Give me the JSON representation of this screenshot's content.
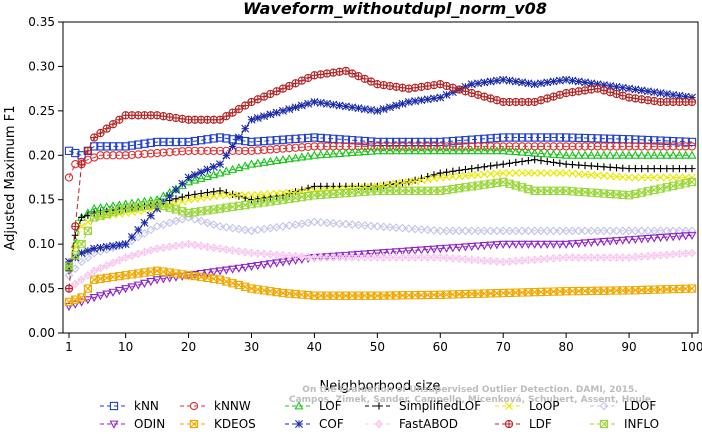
{
  "chart_data": {
    "type": "line",
    "title": "Waveform_withoutdupl_norm_v08",
    "xlabel": "Neighborhood size",
    "ylabel": "Adjusted Maximum F1",
    "xlim": [
      1,
      100
    ],
    "ylim": [
      0,
      0.35
    ],
    "x_ticks": [
      1,
      10,
      20,
      30,
      40,
      50,
      60,
      70,
      80,
      90,
      100
    ],
    "y_ticks": [
      "0.00",
      "0.05",
      "0.10",
      "0.15",
      "0.20",
      "0.25",
      "0.30",
      "0.35"
    ],
    "grid": false,
    "legend_position": "bottom",
    "watermark": [
      "Campos, Zimek, Sander, Campello, Micenková, Schubert, Assent, Houle",
      "On the Evaluation of Unsupervised Outlier Detection. DAMI, 2015."
    ],
    "series": [
      {
        "name": "kNN",
        "color": "#1f3fcf",
        "marker": "square",
        "points": [
          [
            1,
            0.205
          ],
          [
            3,
            0.2
          ],
          [
            5,
            0.21
          ],
          [
            10,
            0.21
          ],
          [
            15,
            0.215
          ],
          [
            20,
            0.215
          ],
          [
            25,
            0.22
          ],
          [
            30,
            0.215
          ],
          [
            40,
            0.22
          ],
          [
            50,
            0.215
          ],
          [
            60,
            0.215
          ],
          [
            70,
            0.22
          ],
          [
            80,
            0.22
          ],
          [
            90,
            0.218
          ],
          [
            100,
            0.215
          ]
        ]
      },
      {
        "name": "kNNW",
        "color": "#e03030",
        "marker": "circle",
        "points": [
          [
            1,
            0.175
          ],
          [
            2,
            0.19
          ],
          [
            4,
            0.195
          ],
          [
            6,
            0.2
          ],
          [
            10,
            0.2
          ],
          [
            20,
            0.205
          ],
          [
            30,
            0.205
          ],
          [
            40,
            0.21
          ],
          [
            50,
            0.21
          ],
          [
            60,
            0.21
          ],
          [
            70,
            0.21
          ],
          [
            80,
            0.21
          ],
          [
            90,
            0.21
          ],
          [
            100,
            0.21
          ]
        ]
      },
      {
        "name": "LOF",
        "color": "#19c419",
        "marker": "triangle",
        "points": [
          [
            1,
            0.075
          ],
          [
            2,
            0.1
          ],
          [
            3,
            0.13
          ],
          [
            5,
            0.14
          ],
          [
            10,
            0.145
          ],
          [
            15,
            0.15
          ],
          [
            20,
            0.17
          ],
          [
            25,
            0.18
          ],
          [
            30,
            0.19
          ],
          [
            40,
            0.2
          ],
          [
            50,
            0.205
          ],
          [
            60,
            0.205
          ],
          [
            70,
            0.205
          ],
          [
            80,
            0.2
          ],
          [
            90,
            0.2
          ],
          [
            100,
            0.2
          ]
        ]
      },
      {
        "name": "SimplifiedLOF",
        "color": "#000000",
        "marker": "plus",
        "points": [
          [
            1,
            0.07
          ],
          [
            2,
            0.11
          ],
          [
            3,
            0.13
          ],
          [
            5,
            0.135
          ],
          [
            10,
            0.14
          ],
          [
            15,
            0.145
          ],
          [
            20,
            0.155
          ],
          [
            25,
            0.16
          ],
          [
            30,
            0.15
          ],
          [
            35,
            0.155
          ],
          [
            40,
            0.165
          ],
          [
            50,
            0.165
          ],
          [
            55,
            0.17
          ],
          [
            60,
            0.18
          ],
          [
            65,
            0.185
          ],
          [
            70,
            0.19
          ],
          [
            75,
            0.195
          ],
          [
            80,
            0.19
          ],
          [
            90,
            0.185
          ],
          [
            100,
            0.185
          ]
        ]
      },
      {
        "name": "LoOP",
        "color": "#e8e800",
        "marker": "x",
        "points": [
          [
            1,
            0.075
          ],
          [
            3,
            0.12
          ],
          [
            5,
            0.13
          ],
          [
            10,
            0.135
          ],
          [
            15,
            0.14
          ],
          [
            20,
            0.15
          ],
          [
            25,
            0.155
          ],
          [
            30,
            0.155
          ],
          [
            40,
            0.16
          ],
          [
            50,
            0.165
          ],
          [
            60,
            0.175
          ],
          [
            70,
            0.18
          ],
          [
            80,
            0.18
          ],
          [
            90,
            0.175
          ],
          [
            100,
            0.175
          ]
        ]
      },
      {
        "name": "LDOF",
        "color": "#c4c4ec",
        "marker": "diamond",
        "points": [
          [
            1,
            0.065
          ],
          [
            3,
            0.08
          ],
          [
            5,
            0.09
          ],
          [
            10,
            0.1
          ],
          [
            15,
            0.12
          ],
          [
            20,
            0.13
          ],
          [
            25,
            0.12
          ],
          [
            30,
            0.115
          ],
          [
            40,
            0.125
          ],
          [
            50,
            0.12
          ],
          [
            60,
            0.115
          ],
          [
            70,
            0.115
          ],
          [
            80,
            0.115
          ],
          [
            90,
            0.115
          ],
          [
            100,
            0.115
          ]
        ]
      },
      {
        "name": "ODIN",
        "color": "#8e22c8",
        "marker": "triangle-down",
        "points": [
          [
            1,
            0.03
          ],
          [
            5,
            0.04
          ],
          [
            10,
            0.05
          ],
          [
            15,
            0.06
          ],
          [
            20,
            0.065
          ],
          [
            25,
            0.07
          ],
          [
            30,
            0.075
          ],
          [
            40,
            0.085
          ],
          [
            50,
            0.09
          ],
          [
            60,
            0.095
          ],
          [
            70,
            0.1
          ],
          [
            80,
            0.1
          ],
          [
            90,
            0.105
          ],
          [
            100,
            0.11
          ]
        ]
      },
      {
        "name": "KDEOS",
        "color": "#f0a800",
        "marker": "square-x",
        "points": [
          [
            1,
            0.035
          ],
          [
            3,
            0.04
          ],
          [
            5,
            0.06
          ],
          [
            10,
            0.065
          ],
          [
            15,
            0.07
          ],
          [
            20,
            0.065
          ],
          [
            25,
            0.06
          ],
          [
            30,
            0.05
          ],
          [
            35,
            0.045
          ],
          [
            40,
            0.042
          ],
          [
            50,
            0.042
          ],
          [
            60,
            0.043
          ],
          [
            70,
            0.045
          ],
          [
            80,
            0.047
          ],
          [
            90,
            0.048
          ],
          [
            100,
            0.05
          ]
        ]
      },
      {
        "name": "COF",
        "color": "#1a2aa8",
        "marker": "star",
        "points": [
          [
            1,
            0.08
          ],
          [
            3,
            0.09
          ],
          [
            5,
            0.095
          ],
          [
            10,
            0.1
          ],
          [
            15,
            0.14
          ],
          [
            20,
            0.175
          ],
          [
            25,
            0.19
          ],
          [
            30,
            0.24
          ],
          [
            35,
            0.25
          ],
          [
            40,
            0.26
          ],
          [
            45,
            0.255
          ],
          [
            50,
            0.25
          ],
          [
            55,
            0.26
          ],
          [
            60,
            0.265
          ],
          [
            65,
            0.28
          ],
          [
            70,
            0.285
          ],
          [
            75,
            0.28
          ],
          [
            80,
            0.285
          ],
          [
            85,
            0.28
          ],
          [
            90,
            0.275
          ],
          [
            95,
            0.27
          ],
          [
            100,
            0.265
          ]
        ]
      },
      {
        "name": "FastABOD",
        "color": "#f7c8f0",
        "marker": "diamond-plus",
        "points": [
          [
            1,
            0.05
          ],
          [
            5,
            0.07
          ],
          [
            10,
            0.085
          ],
          [
            15,
            0.095
          ],
          [
            20,
            0.1
          ],
          [
            25,
            0.095
          ],
          [
            30,
            0.09
          ],
          [
            40,
            0.085
          ],
          [
            50,
            0.085
          ],
          [
            60,
            0.085
          ],
          [
            70,
            0.08
          ],
          [
            80,
            0.085
          ],
          [
            90,
            0.085
          ],
          [
            100,
            0.09
          ]
        ]
      },
      {
        "name": "LDF",
        "color": "#b52424",
        "marker": "circle-plus",
        "points": [
          [
            1,
            0.05
          ],
          [
            3,
            0.19
          ],
          [
            5,
            0.22
          ],
          [
            10,
            0.245
          ],
          [
            15,
            0.245
          ],
          [
            20,
            0.24
          ],
          [
            25,
            0.24
          ],
          [
            30,
            0.26
          ],
          [
            35,
            0.275
          ],
          [
            40,
            0.29
          ],
          [
            45,
            0.295
          ],
          [
            50,
            0.28
          ],
          [
            55,
            0.275
          ],
          [
            60,
            0.28
          ],
          [
            65,
            0.27
          ],
          [
            70,
            0.26
          ],
          [
            75,
            0.26
          ],
          [
            80,
            0.27
          ],
          [
            85,
            0.275
          ],
          [
            90,
            0.265
          ],
          [
            95,
            0.26
          ],
          [
            100,
            0.26
          ]
        ]
      },
      {
        "name": "INFLO",
        "color": "#9ad63a",
        "marker": "square-x",
        "points": [
          [
            1,
            0.075
          ],
          [
            3,
            0.1
          ],
          [
            5,
            0.13
          ],
          [
            10,
            0.14
          ],
          [
            15,
            0.145
          ],
          [
            20,
            0.135
          ],
          [
            25,
            0.14
          ],
          [
            30,
            0.145
          ],
          [
            40,
            0.155
          ],
          [
            50,
            0.16
          ],
          [
            60,
            0.16
          ],
          [
            65,
            0.165
          ],
          [
            70,
            0.17
          ],
          [
            75,
            0.16
          ],
          [
            80,
            0.16
          ],
          [
            90,
            0.155
          ],
          [
            100,
            0.17
          ]
        ]
      }
    ]
  }
}
